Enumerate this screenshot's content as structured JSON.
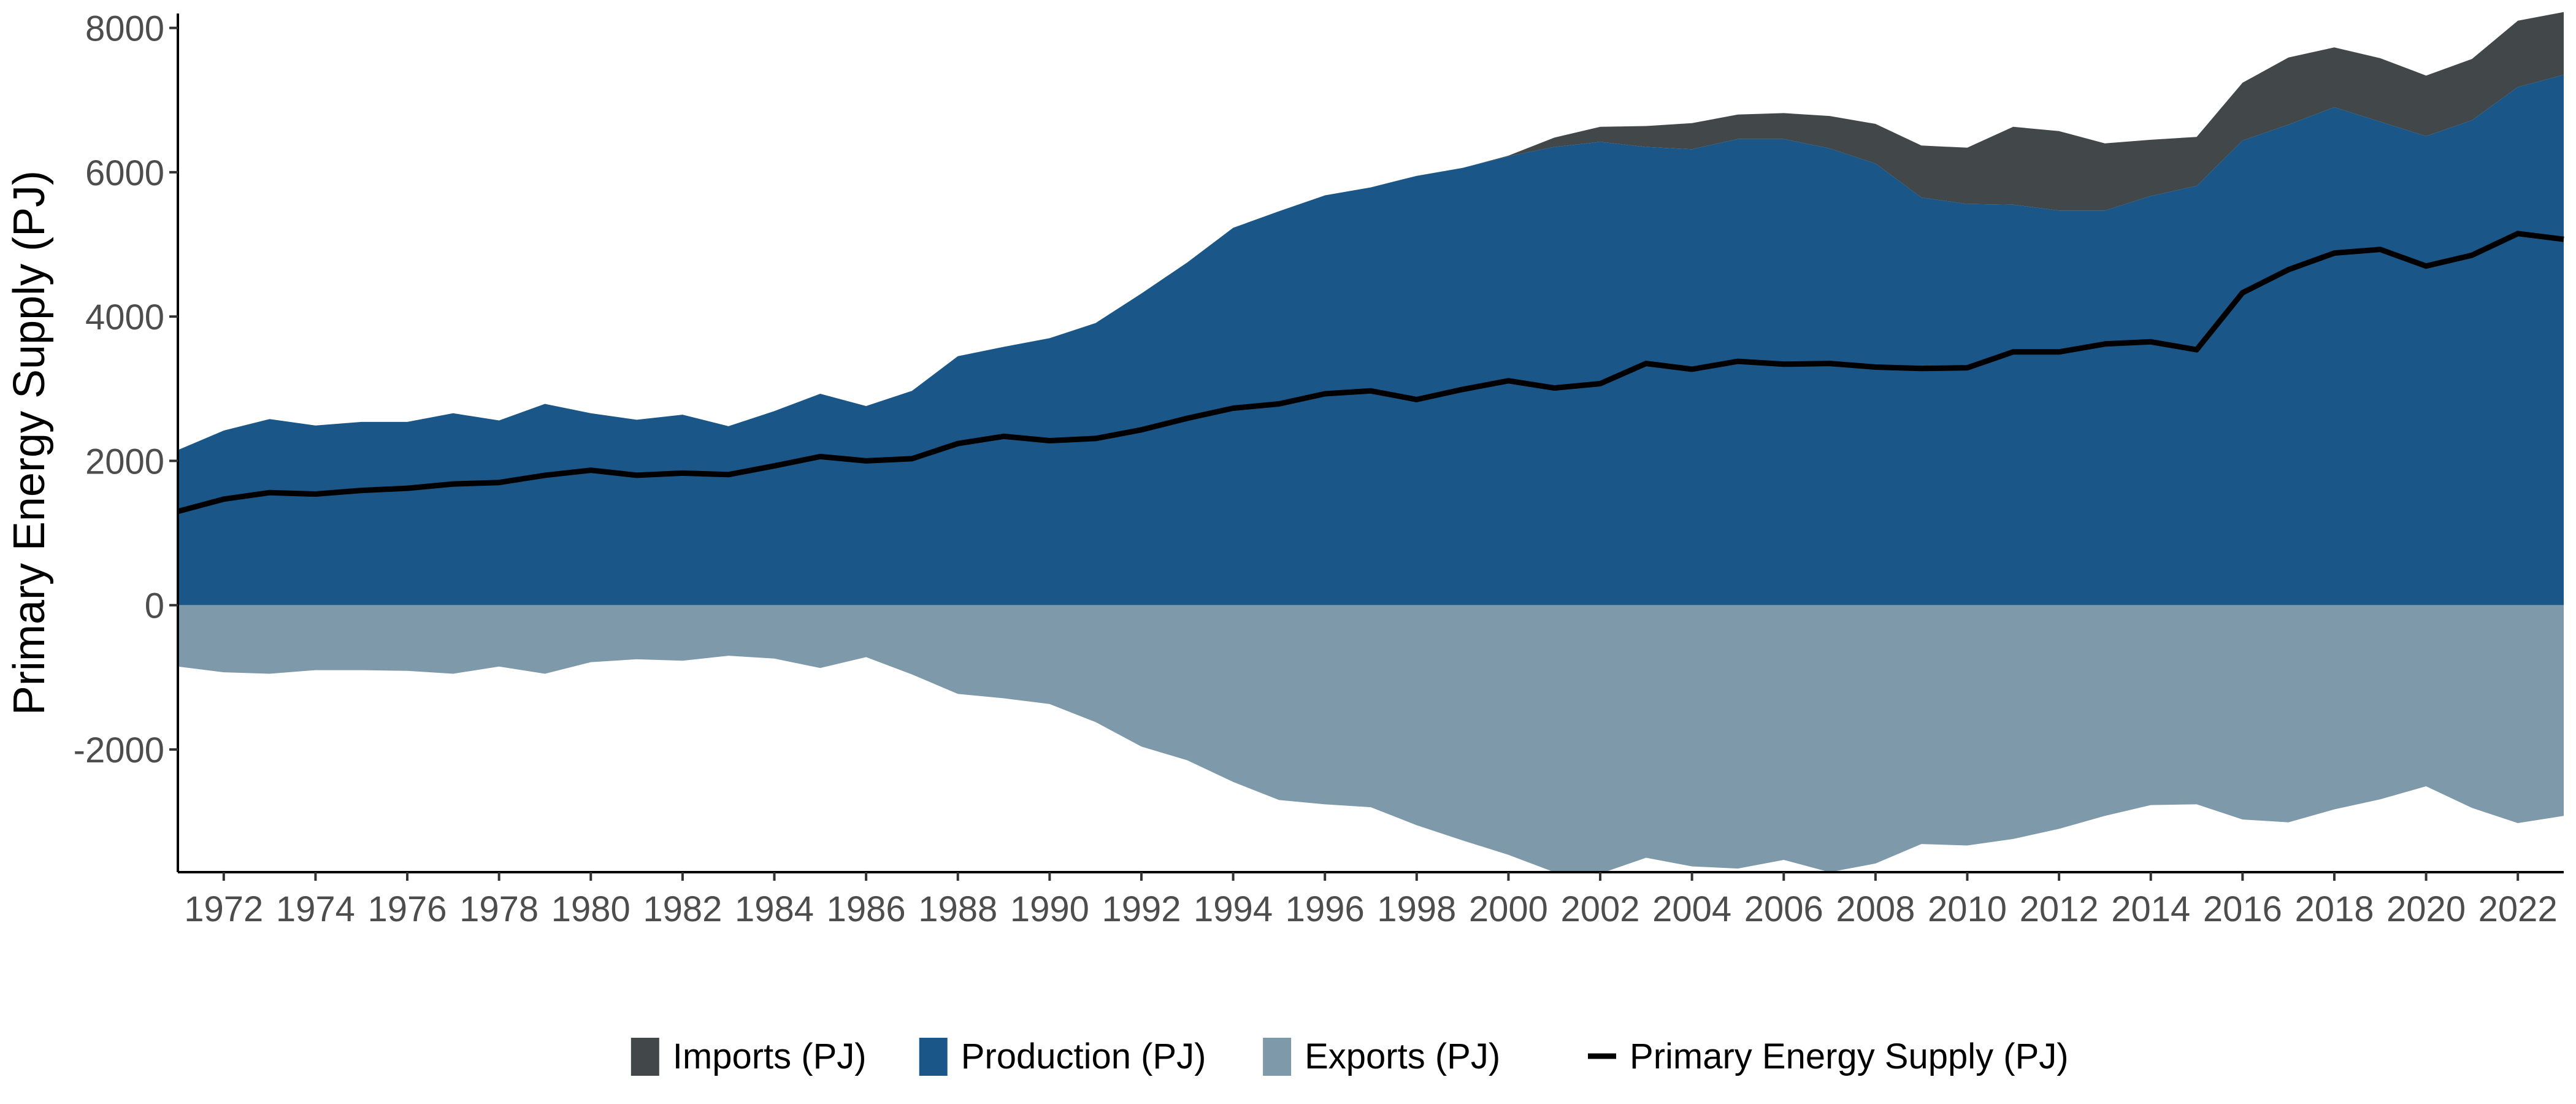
{
  "chart_data": {
    "type": "area",
    "title": "",
    "xlabel": "",
    "ylabel": "Primary Energy Supply (PJ)",
    "xlim": [
      1971,
      2023
    ],
    "ylim": [
      -3700,
      8200
    ],
    "grid": false,
    "legend_position": "bottom",
    "x_ticks": [
      1972,
      1974,
      1976,
      1978,
      1980,
      1982,
      1984,
      1986,
      1988,
      1990,
      1992,
      1994,
      1996,
      1998,
      2000,
      2002,
      2004,
      2006,
      2008,
      2010,
      2012,
      2014,
      2016,
      2018,
      2020,
      2022
    ],
    "y_ticks": [
      -2000,
      0,
      2000,
      4000,
      6000,
      8000
    ],
    "x": [
      1971,
      1972,
      1973,
      1974,
      1975,
      1976,
      1977,
      1978,
      1979,
      1980,
      1981,
      1982,
      1983,
      1984,
      1985,
      1986,
      1987,
      1988,
      1989,
      1990,
      1991,
      1992,
      1993,
      1994,
      1995,
      1996,
      1997,
      1998,
      1999,
      2000,
      2001,
      2002,
      2003,
      2004,
      2005,
      2006,
      2007,
      2008,
      2009,
      2010,
      2011,
      2012,
      2013,
      2014,
      2015,
      2016,
      2017,
      2018,
      2019,
      2020,
      2021,
      2022,
      2023
    ],
    "series": [
      {
        "name": "Production (PJ)",
        "kind": "area",
        "color": "#1a5788",
        "values": [
          2150,
          2420,
          2580,
          2490,
          2540,
          2540,
          2660,
          2560,
          2790,
          2660,
          2570,
          2640,
          2480,
          2690,
          2930,
          2760,
          2970,
          3450,
          3580,
          3700,
          3910,
          4320,
          4750,
          5230,
          5460,
          5680,
          5790,
          5950,
          6060,
          6220,
          6350,
          6420,
          6350,
          6320,
          6460,
          6460,
          6330,
          6120,
          5650,
          5560,
          5550,
          5470,
          5470,
          5670,
          5810,
          6440,
          6660,
          6900,
          6700,
          6500,
          6720,
          7180,
          7350
        ]
      },
      {
        "name": "Imports (PJ)",
        "kind": "area",
        "color": "#424849",
        "values": [
          0,
          0,
          0,
          0,
          0,
          0,
          0,
          0,
          0,
          0,
          0,
          0,
          0,
          0,
          0,
          0,
          0,
          0,
          0,
          0,
          0,
          0,
          0,
          0,
          0,
          0,
          0,
          0,
          0,
          10,
          130,
          210,
          290,
          360,
          340,
          360,
          450,
          550,
          720,
          780,
          1080,
          1100,
          930,
          780,
          680,
          800,
          930,
          830,
          880,
          840,
          850,
          920,
          870
        ]
      },
      {
        "name": "Exports (PJ)",
        "kind": "area",
        "color": "#7e99aa",
        "values": [
          -850,
          -930,
          -950,
          -900,
          -900,
          -910,
          -950,
          -850,
          -950,
          -790,
          -750,
          -770,
          -700,
          -740,
          -870,
          -720,
          -960,
          -1230,
          -1290,
          -1370,
          -1620,
          -1960,
          -2150,
          -2450,
          -2700,
          -2760,
          -2800,
          -3050,
          -3260,
          -3460,
          -3700,
          -3720,
          -3500,
          -3620,
          -3650,
          -3530,
          -3700,
          -3580,
          -3310,
          -3330,
          -3240,
          -3100,
          -2920,
          -2770,
          -2760,
          -2970,
          -3010,
          -2830,
          -2690,
          -2510,
          -2810,
          -3020,
          -2920
        ]
      },
      {
        "name": "Primary Energy Supply (PJ)",
        "kind": "line",
        "color": "#000000",
        "values": [
          1300,
          1470,
          1560,
          1540,
          1590,
          1620,
          1680,
          1700,
          1800,
          1870,
          1800,
          1830,
          1810,
          1930,
          2060,
          2000,
          2030,
          2240,
          2340,
          2280,
          2310,
          2430,
          2590,
          2730,
          2790,
          2930,
          2970,
          2850,
          2990,
          3110,
          3010,
          3070,
          3350,
          3270,
          3380,
          3340,
          3350,
          3300,
          3280,
          3290,
          3510,
          3510,
          3620,
          3650,
          3540,
          4330,
          4650,
          4880,
          4930,
          4700,
          4850,
          5150,
          5070
        ]
      }
    ]
  },
  "legend": {
    "items": [
      {
        "label": "Imports (PJ)",
        "color": "#424849",
        "kind": "box"
      },
      {
        "label": "Production (PJ)",
        "color": "#1a5788",
        "kind": "box"
      },
      {
        "label": "Exports (PJ)",
        "color": "#7e99aa",
        "kind": "box"
      },
      {
        "label": "Primary Energy Supply (PJ)",
        "color": "#000000",
        "kind": "line"
      }
    ]
  }
}
